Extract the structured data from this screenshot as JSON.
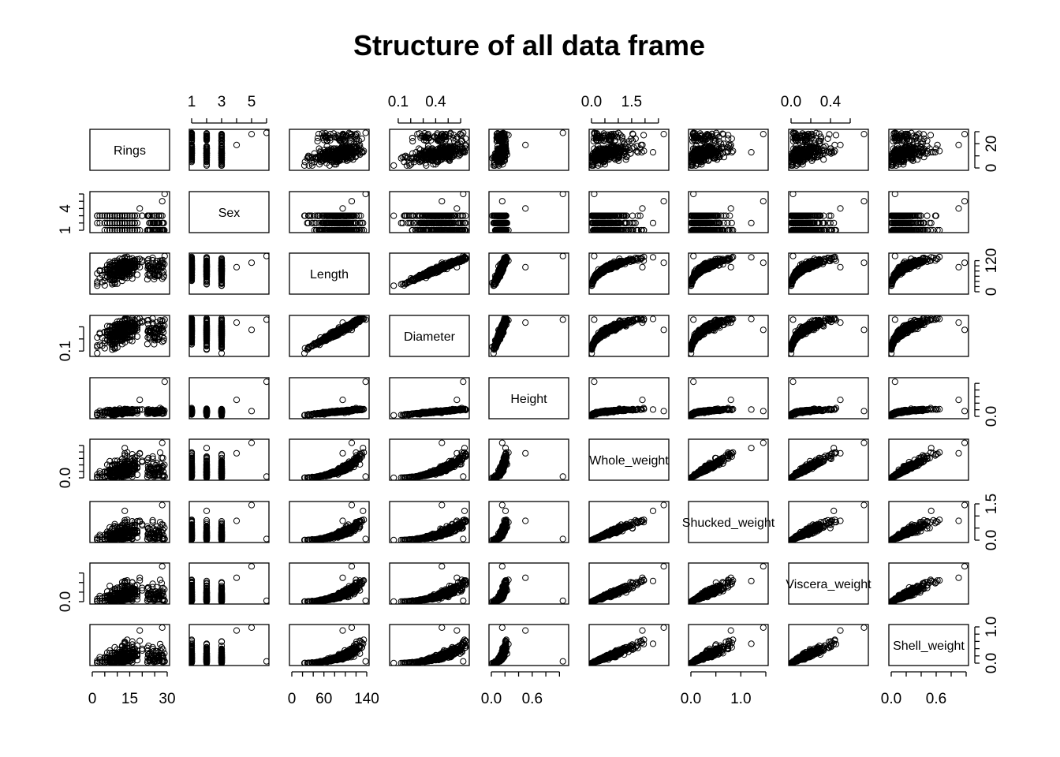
{
  "chart_data": {
    "type": "scatter",
    "subtype": "pairs-matrix",
    "title": "Structure of all data frame",
    "variables": [
      "Rings",
      "Sex",
      "Length",
      "Diameter",
      "Height",
      "Whole_weight",
      "Shucked_weight",
      "Viscera_weight",
      "Shell_weight"
    ],
    "ranges": {
      "Rings": [
        0,
        30
      ],
      "Sex": [
        1,
        6
      ],
      "Length": [
        0,
        140
      ],
      "Diameter": [
        0.05,
        0.65
      ],
      "Height": [
        0,
        1.1
      ],
      "Whole_weight": [
        0,
        2.8
      ],
      "Shucked_weight": [
        0,
        1.5
      ],
      "Viscera_weight": [
        0,
        0.76
      ],
      "Shell_weight": [
        0,
        1.0
      ]
    },
    "axes": [
      {
        "variable": "Rings",
        "side": "bottom",
        "ticks": [
          0,
          5,
          10,
          15,
          20,
          25,
          30
        ],
        "labels": [
          {
            "value": 0,
            "text": "0"
          },
          {
            "value": 15,
            "text": "15"
          },
          {
            "value": 30,
            "text": "30"
          }
        ]
      },
      {
        "variable": "Sex",
        "side": "top",
        "ticks": [
          1,
          2,
          3,
          4,
          5,
          6
        ],
        "labels": [
          {
            "value": 1,
            "text": "1"
          },
          {
            "value": 3,
            "text": "3"
          },
          {
            "value": 5,
            "text": "5"
          }
        ]
      },
      {
        "variable": "Length",
        "side": "bottom",
        "ticks": [
          0,
          20,
          40,
          60,
          80,
          100,
          120,
          140
        ],
        "labels": [
          {
            "value": 0,
            "text": "0"
          },
          {
            "value": 60,
            "text": "60"
          },
          {
            "value": 140,
            "text": "140"
          }
        ]
      },
      {
        "variable": "Diameter",
        "side": "top",
        "ticks": [
          0.1,
          0.2,
          0.3,
          0.4,
          0.5,
          0.6
        ],
        "labels": [
          {
            "value": 0.1,
            "text": "0.1"
          },
          {
            "value": 0.4,
            "text": "0.4"
          }
        ]
      },
      {
        "variable": "Height",
        "side": "bottom",
        "ticks": [
          0,
          0.2,
          0.4,
          0.6,
          0.8,
          1.0
        ],
        "labels": [
          {
            "value": 0,
            "text": "0.0"
          },
          {
            "value": 0.6,
            "text": "0.6"
          }
        ]
      },
      {
        "variable": "Whole_weight",
        "side": "top",
        "ticks": [
          0,
          0.5,
          1.0,
          1.5,
          2.0,
          2.5
        ],
        "labels": [
          {
            "value": 0,
            "text": "0.0"
          },
          {
            "value": 1.5,
            "text": "1.5"
          }
        ]
      },
      {
        "variable": "Shucked_weight",
        "side": "bottom",
        "ticks": [
          0,
          0.5,
          1.0,
          1.5
        ],
        "labels": [
          {
            "value": 0,
            "text": "0.0"
          },
          {
            "value": 1.0,
            "text": "1.0"
          }
        ]
      },
      {
        "variable": "Viscera_weight",
        "side": "top",
        "ticks": [
          0,
          0.2,
          0.4,
          0.6
        ],
        "labels": [
          {
            "value": 0,
            "text": "0.0"
          },
          {
            "value": 0.4,
            "text": "0.4"
          }
        ]
      },
      {
        "variable": "Shell_weight",
        "side": "bottom",
        "ticks": [
          0,
          0.2,
          0.4,
          0.6,
          0.8,
          1.0
        ],
        "labels": [
          {
            "value": 0,
            "text": "0.0"
          },
          {
            "value": 0.6,
            "text": "0.6"
          }
        ]
      },
      {
        "variable": "Rings",
        "side": "right",
        "ticks": [
          0,
          10,
          20,
          30
        ],
        "labels": [
          {
            "value": 0,
            "text": "0"
          },
          {
            "value": 20,
            "text": "20"
          }
        ]
      },
      {
        "variable": "Sex",
        "side": "left",
        "ticks": [
          1,
          2,
          3,
          4,
          5,
          6
        ],
        "labels": [
          {
            "value": 1,
            "text": "1"
          },
          {
            "value": 4,
            "text": "4"
          }
        ]
      },
      {
        "variable": "Length",
        "side": "right",
        "ticks": [
          0,
          20,
          40,
          60,
          80,
          100,
          120
        ],
        "labels": [
          {
            "value": 0,
            "text": "0"
          },
          {
            "value": 120,
            "text": "120"
          }
        ]
      },
      {
        "variable": "Diameter",
        "side": "left",
        "ticks": [
          0.1,
          0.3,
          0.5
        ],
        "labels": [
          {
            "value": 0.1,
            "text": "0.1"
          }
        ]
      },
      {
        "variable": "Height",
        "side": "right",
        "ticks": [
          0,
          0.2,
          0.4,
          0.6,
          0.8,
          1.0
        ],
        "labels": [
          {
            "value": 0,
            "text": "0.0"
          }
        ]
      },
      {
        "variable": "Whole_weight",
        "side": "left",
        "ticks": [
          0,
          0.5,
          1.0,
          1.5,
          2.0,
          2.5
        ],
        "labels": [
          {
            "value": 0,
            "text": "0.0"
          }
        ]
      },
      {
        "variable": "Shucked_weight",
        "side": "right",
        "ticks": [
          0,
          0.5,
          1.0,
          1.5
        ],
        "labels": [
          {
            "value": 0,
            "text": "0.0"
          },
          {
            "value": 1.5,
            "text": "1.5"
          }
        ]
      },
      {
        "variable": "Viscera_weight",
        "side": "left",
        "ticks": [
          0,
          0.2,
          0.4,
          0.6
        ],
        "labels": [
          {
            "value": 0,
            "text": "0.0"
          }
        ]
      },
      {
        "variable": "Shell_weight",
        "side": "right",
        "ticks": [
          0,
          0.2,
          0.4,
          0.6,
          0.8,
          1.0
        ],
        "labels": [
          {
            "value": 0,
            "text": "0.0"
          },
          {
            "value": 1.0,
            "text": "1.0"
          }
        ]
      }
    ],
    "grid": false,
    "legend": "none",
    "marker": "open-circle",
    "marker_color": "#000000"
  }
}
